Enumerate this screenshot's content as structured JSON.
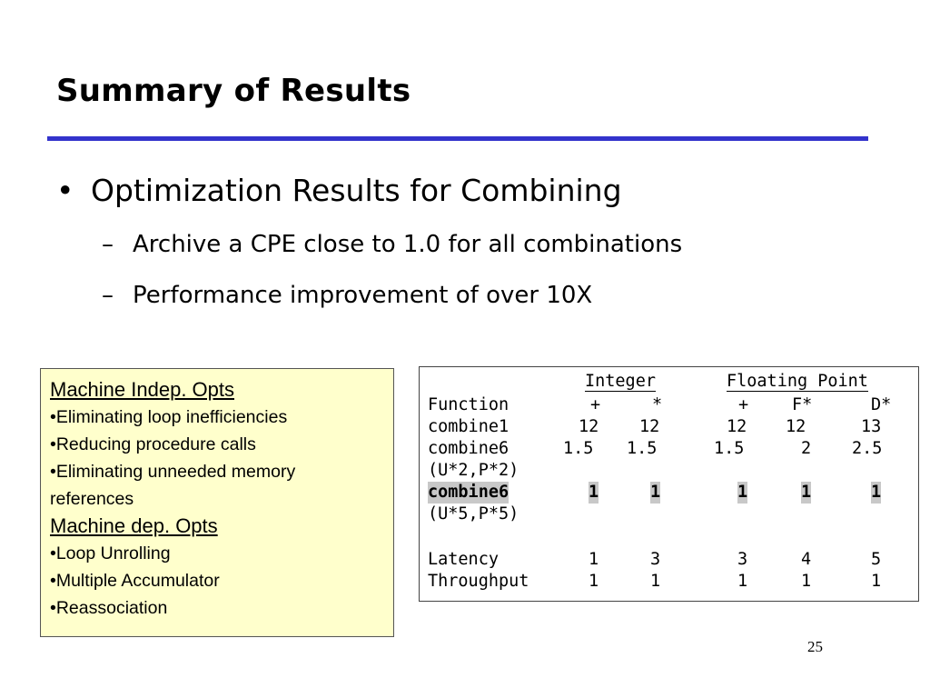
{
  "slide": {
    "title": "Summary of Results",
    "page_number": "25"
  },
  "bullets": {
    "main": "Optimization Results for Combining",
    "subs": [
      "Archive a CPE close to 1.0 for all combinations",
      "Performance improvement of over 10X"
    ]
  },
  "left_box": {
    "heading1": "Machine Indep. Opts",
    "items1": [
      "•Eliminating loop inefficiencies",
      "•Reducing procedure calls",
      "•Eliminating unneeded memory",
      "references"
    ],
    "heading2": "Machine dep. Opts",
    "items2": [
      "•Loop Unrolling",
      "•Multiple Accumulator",
      "•Reassociation"
    ]
  },
  "table": {
    "group_headers": [
      "Integer",
      "Floating Point"
    ],
    "columns": [
      "Function",
      "+",
      "*",
      "+",
      "F*",
      "D*"
    ],
    "rows": [
      {
        "name": "combine1",
        "values": [
          "12",
          "12",
          "12",
          "12",
          "13"
        ]
      },
      {
        "name": "combine6",
        "values": [
          "1.5",
          "1.5",
          "1.5",
          "2",
          "2.5"
        ]
      },
      {
        "name": "(U*2,P*2)",
        "values": [
          "",
          "",
          "",
          "",
          ""
        ]
      },
      {
        "name": "combine6",
        "values": [
          "1",
          "1",
          "1",
          "1",
          "1"
        ]
      },
      {
        "name": "(U*5,P*5)",
        "values": [
          "",
          "",
          "",
          "",
          ""
        ]
      },
      {
        "name": "Latency",
        "values": [
          "1",
          "3",
          "3",
          "4",
          "5"
        ]
      },
      {
        "name": "Throughput",
        "values": [
          "1",
          "1",
          "1",
          "1",
          "1"
        ]
      }
    ]
  }
}
